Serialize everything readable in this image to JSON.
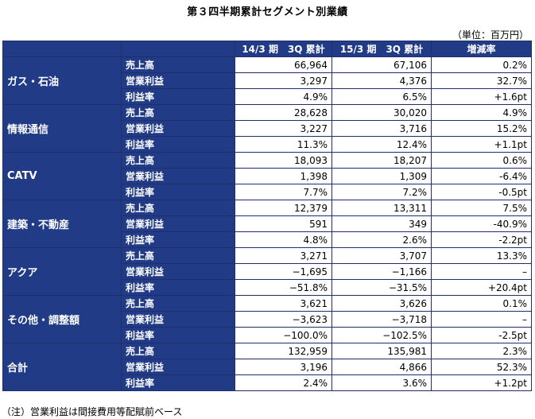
{
  "title": "第３四半期累計セグメント別業績",
  "unit": "（単位：百万円）",
  "columns": [
    "14/3 期　3Q 累計",
    "15/3 期　3Q 累計",
    "増減率"
  ],
  "segments": [
    {
      "name": "ガス・石油",
      "rows": [
        {
          "metric": "売上高",
          "v1": "66,964",
          "v2": "67,106",
          "chg": "0.2%"
        },
        {
          "metric": "営業利益",
          "v1": "3,297",
          "v2": "4,376",
          "chg": "32.7%"
        },
        {
          "metric": "利益率",
          "v1": "4.9%",
          "v2": "6.5%",
          "chg": "+1.6pt"
        }
      ]
    },
    {
      "name": "情報通信",
      "rows": [
        {
          "metric": "売上高",
          "v1": "28,628",
          "v2": "30,020",
          "chg": "4.9%"
        },
        {
          "metric": "営業利益",
          "v1": "3,227",
          "v2": "3,716",
          "chg": "15.2%"
        },
        {
          "metric": "利益率",
          "v1": "11.3%",
          "v2": "12.4%",
          "chg": "+1.1pt"
        }
      ]
    },
    {
      "name": "CATV",
      "rows": [
        {
          "metric": "売上高",
          "v1": "18,093",
          "v2": "18,207",
          "chg": "0.6%"
        },
        {
          "metric": "営業利益",
          "v1": "1,398",
          "v2": "1,309",
          "chg": "-6.4%"
        },
        {
          "metric": "利益率",
          "v1": "7.7%",
          "v2": "7.2%",
          "chg": "-0.5pt"
        }
      ]
    },
    {
      "name": "建築・不動産",
      "rows": [
        {
          "metric": "売上高",
          "v1": "12,379",
          "v2": "13,311",
          "chg": "7.5%"
        },
        {
          "metric": "営業利益",
          "v1": "591",
          "v2": "349",
          "chg": "-40.9%"
        },
        {
          "metric": "利益率",
          "v1": "4.8%",
          "v2": "2.6%",
          "chg": "-2.2pt"
        }
      ]
    },
    {
      "name": "アクア",
      "rows": [
        {
          "metric": "売上高",
          "v1": "3,271",
          "v2": "3,707",
          "chg": "13.3%"
        },
        {
          "metric": "営業利益",
          "v1": "−1,695",
          "v2": "−1,166",
          "chg": "–"
        },
        {
          "metric": "利益率",
          "v1": "−51.8%",
          "v2": "−31.5%",
          "chg": "+20.4pt"
        }
      ]
    },
    {
      "name": "その他・調整額",
      "rows": [
        {
          "metric": "売上高",
          "v1": "3,621",
          "v2": "3,626",
          "chg": "0.1%"
        },
        {
          "metric": "営業利益",
          "v1": "−3,623",
          "v2": "−3,718",
          "chg": "–"
        },
        {
          "metric": "利益率",
          "v1": "−100.0%",
          "v2": "−102.5%",
          "chg": "-2.5pt"
        }
      ]
    },
    {
      "name": "合計",
      "rows": [
        {
          "metric": "売上高",
          "v1": "132,959",
          "v2": "135,981",
          "chg": "2.3%"
        },
        {
          "metric": "営業利益",
          "v1": "3,196",
          "v2": "4,866",
          "chg": "52.3%"
        },
        {
          "metric": "利益率",
          "v1": "2.4%",
          "v2": "3.6%",
          "chg": "+1.2pt"
        }
      ]
    }
  ],
  "note": "（注）営業利益は間接費用等配賦前ベース",
  "colors": {
    "header_bg": "#213b86",
    "header_text": "#ffffff"
  }
}
